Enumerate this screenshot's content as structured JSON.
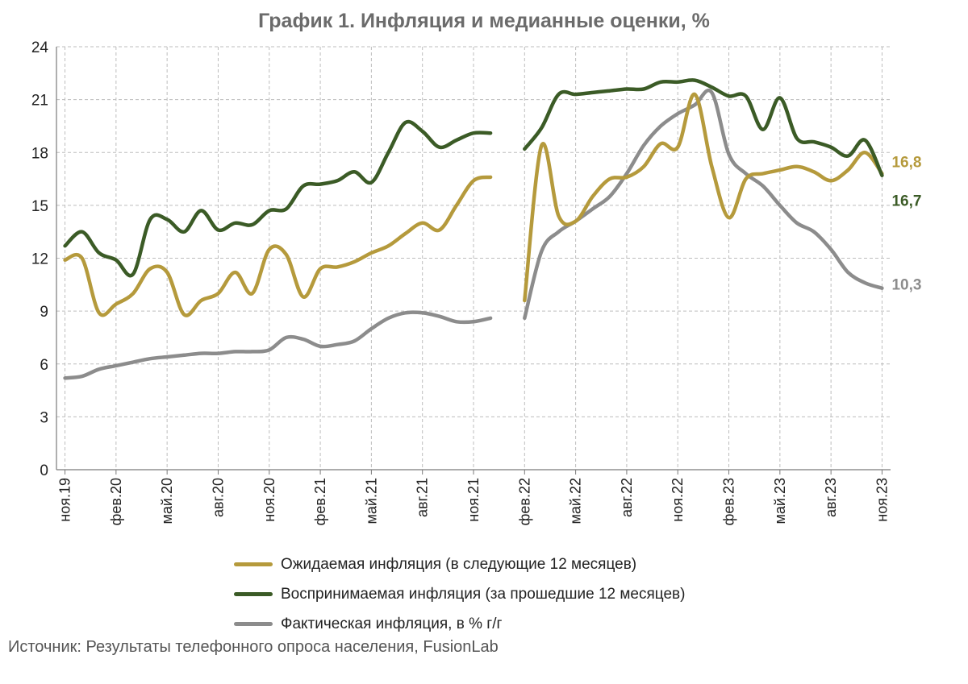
{
  "chart_data": {
    "type": "line",
    "title": "График 1. Инфляция и медианные оценки, %",
    "ylim": [
      0,
      24
    ],
    "yticks": [
      "0",
      "3",
      "6",
      "9",
      "12",
      "15",
      "18",
      "21",
      "24"
    ],
    "x": [
      "ноя.19",
      "дек.19",
      "янв.20",
      "фев.20",
      "мар.20",
      "апр.20",
      "май.20",
      "июн.20",
      "июл.20",
      "авг.20",
      "сен.20",
      "окт.20",
      "ноя.20",
      "дек.20",
      "янв.21",
      "фев.21",
      "мар.21",
      "апр.21",
      "май.21",
      "июн.21",
      "июл.21",
      "авг.21",
      "сен.21",
      "окт.21",
      "ноя.21",
      "дек.21",
      "янв.22",
      "фев.22",
      "мар.22",
      "апр.22",
      "май.22",
      "июн.22",
      "июл.22",
      "авг.22",
      "сен.22",
      "окт.22",
      "ноя.22",
      "дек.22",
      "янв.23",
      "фев.23",
      "мар.23",
      "апр.23",
      "май.23",
      "июн.23",
      "июл.23",
      "авг.23",
      "сен.23",
      "окт.23",
      "ноя.23"
    ],
    "xtick_labels": [
      "ноя.19",
      "фев.20",
      "май.20",
      "авг.20",
      "ноя.20",
      "фев.21",
      "май.21",
      "авг.21",
      "ноя.21",
      "фев.22",
      "май.22",
      "авг.22",
      "ноя.22",
      "фев.23",
      "май.23",
      "авг.23",
      "ноя.23"
    ],
    "grid": true,
    "legend_position": "bottom",
    "series": [
      {
        "name": "Ожидаемая инфляция (в следующие 12 месяцев)",
        "color": "#b59a3c",
        "values": [
          11.9,
          12.0,
          8.9,
          9.4,
          10.0,
          11.4,
          11.2,
          8.8,
          9.6,
          10.0,
          11.2,
          10.0,
          12.5,
          12.2,
          9.8,
          11.4,
          11.5,
          11.8,
          12.3,
          12.7,
          13.4,
          14.0,
          13.6,
          15.0,
          16.4,
          16.6,
          null,
          9.6,
          18.4,
          14.4,
          14.1,
          15.5,
          16.5,
          16.6,
          17.2,
          18.5,
          18.3,
          21.3,
          17.2,
          14.3,
          16.5,
          16.8,
          17.0,
          17.2,
          16.9,
          16.4,
          17.0,
          18.0,
          16.8
        ],
        "end_label": "16,8"
      },
      {
        "name": "Воспринимаемая инфляция (за прошедшие 12 месяцев)",
        "color": "#3b5b26",
        "values": [
          12.7,
          13.5,
          12.3,
          11.9,
          11.1,
          14.2,
          14.2,
          13.5,
          14.7,
          13.6,
          14.0,
          13.9,
          14.7,
          14.8,
          16.1,
          16.2,
          16.4,
          16.9,
          16.3,
          18.0,
          19.7,
          19.2,
          18.3,
          18.7,
          19.1,
          19.1,
          null,
          18.2,
          19.4,
          21.3,
          21.3,
          21.4,
          21.5,
          21.6,
          21.6,
          22.0,
          22.0,
          22.1,
          21.7,
          21.2,
          21.2,
          19.3,
          21.1,
          18.8,
          18.6,
          18.3,
          17.8,
          18.7,
          16.7
        ],
        "end_label": "16,7"
      },
      {
        "name": "Фактическая инфляция, в % г/г",
        "color": "#8c8c8c",
        "values": [
          5.2,
          5.3,
          5.7,
          5.9,
          6.1,
          6.3,
          6.4,
          6.5,
          6.6,
          6.6,
          6.7,
          6.7,
          6.8,
          7.5,
          7.4,
          7.0,
          7.1,
          7.3,
          8.0,
          8.6,
          8.9,
          8.9,
          8.7,
          8.4,
          8.4,
          8.6,
          null,
          8.6,
          12.4,
          13.5,
          14.1,
          14.8,
          15.5,
          16.8,
          18.4,
          19.5,
          20.2,
          20.7,
          21.4,
          17.9,
          16.8,
          16.1,
          15.0,
          14.0,
          13.5,
          12.5,
          11.2,
          10.6,
          10.3
        ],
        "end_label": "10,3"
      }
    ],
    "source": "Источник: Результаты телефонного опроса населения, FusionLab"
  }
}
